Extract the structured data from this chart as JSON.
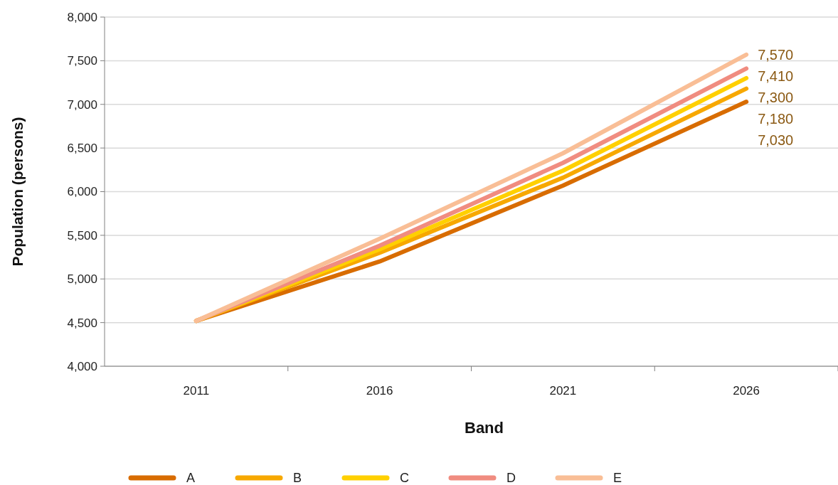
{
  "chart_data": {
    "type": "line",
    "xlabel": "Band",
    "ylabel": "Population (persons)",
    "categories": [
      "2011",
      "2016",
      "2021",
      "2026"
    ],
    "ylim": [
      4000,
      8000
    ],
    "yticks": [
      {
        "value": 4000,
        "label": "4,000"
      },
      {
        "value": 4500,
        "label": "4,500"
      },
      {
        "value": 5000,
        "label": "5,000"
      },
      {
        "value": 5500,
        "label": "5,500"
      },
      {
        "value": 6000,
        "label": "6,000"
      },
      {
        "value": 6500,
        "label": "6,500"
      },
      {
        "value": 7000,
        "label": "7,000"
      },
      {
        "value": 7500,
        "label": "7,500"
      },
      {
        "value": 8000,
        "label": "8,000"
      }
    ],
    "grid": "y",
    "legend": "bottom",
    "marker": "none",
    "line_style": "solid",
    "series": [
      {
        "name": "A",
        "color": "#d86c00",
        "values": [
          4520,
          5200,
          6070,
          7030
        ],
        "value_labels": [
          null,
          null,
          null,
          "7,030"
        ]
      },
      {
        "name": "B",
        "color": "#f7a800",
        "values": [
          4520,
          5300,
          6160,
          7180
        ],
        "value_labels": [
          null,
          null,
          null,
          "7,180"
        ]
      },
      {
        "name": "C",
        "color": "#ffd000",
        "values": [
          4520,
          5340,
          6240,
          7300
        ],
        "value_labels": [
          null,
          null,
          null,
          "7,300"
        ]
      },
      {
        "name": "D",
        "color": "#f08c80",
        "values": [
          4520,
          5380,
          6330,
          7410
        ],
        "value_labels": [
          null,
          null,
          null,
          "7,410"
        ]
      },
      {
        "name": "E",
        "color": "#f9be96",
        "values": [
          4520,
          5460,
          6440,
          7570
        ],
        "value_labels": [
          null,
          null,
          null,
          "7,570"
        ]
      }
    ]
  }
}
